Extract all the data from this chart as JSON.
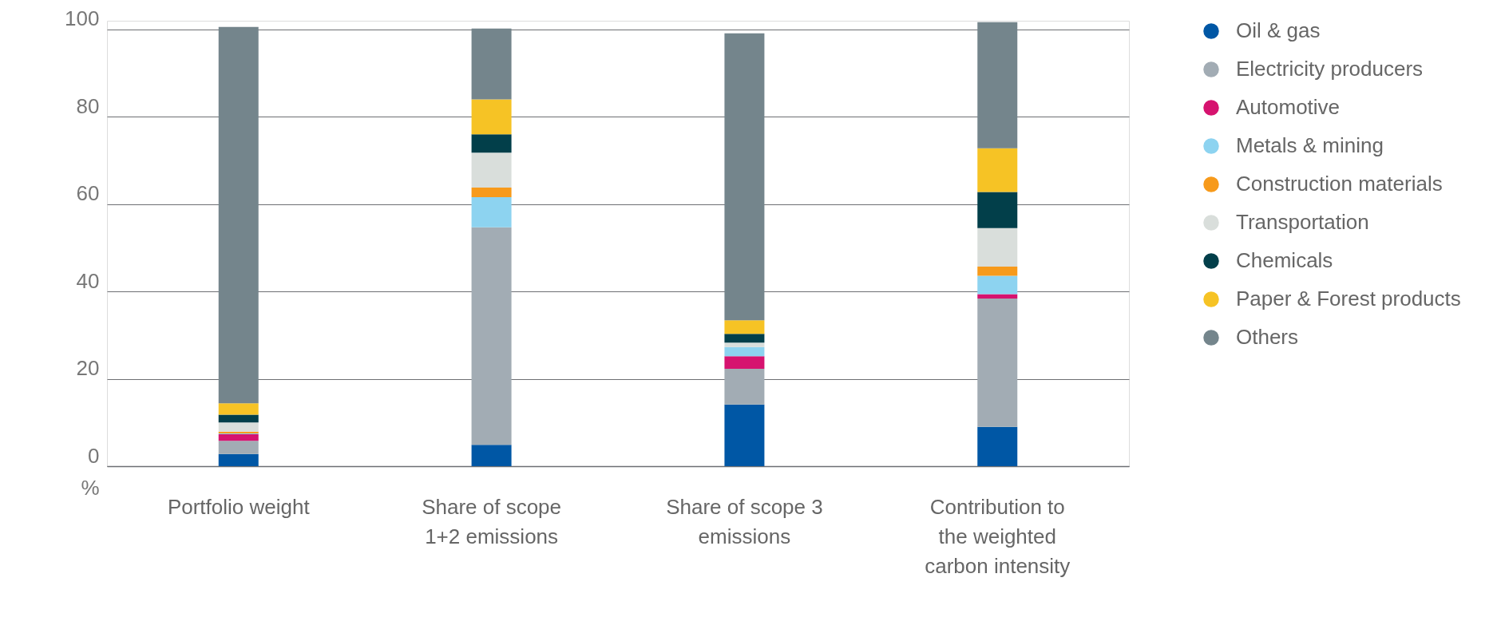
{
  "chart_data": {
    "type": "bar",
    "stacked": true,
    "ylabel": "%",
    "categories": [
      "Portfolio weight",
      "Share of scope\n1+2 emissions",
      "Share of scope 3\nemissions",
      "Contribution to\nthe weighted\ncarbon intensity"
    ],
    "series": [
      {
        "name": "Oil & gas",
        "color": "#0057a5",
        "values": [
          2.8,
          4.9,
          14.1,
          9.0
        ]
      },
      {
        "name": "Electricity producers",
        "color": "#a2acb4",
        "values": [
          3.0,
          49.8,
          8.2,
          29.4
        ]
      },
      {
        "name": "Automotive",
        "color": "#d6136f",
        "values": [
          1.5,
          0,
          2.9,
          1.0
        ]
      },
      {
        "name": "Metals & mining",
        "color": "#8dd3f0",
        "values": [
          0.2,
          6.9,
          2.1,
          4.2
        ]
      },
      {
        "name": "Construction materials",
        "color": "#f79a1b",
        "values": [
          0.4,
          2.2,
          0,
          2.1
        ]
      },
      {
        "name": "Transportation",
        "color": "#d9dedb",
        "values": [
          2.1,
          8.0,
          1.0,
          8.8
        ]
      },
      {
        "name": "Chemicals",
        "color": "#023f4a",
        "values": [
          1.8,
          4.2,
          2.0,
          8.3
        ]
      },
      {
        "name": "Paper & Forest products",
        "color": "#f6c325",
        "values": [
          2.6,
          8.0,
          3.1,
          10.0
        ]
      },
      {
        "name": "Others",
        "color": "#74858c",
        "values": [
          86.2,
          16.2,
          65.7,
          28.9
        ]
      }
    ],
    "ylim": [
      0,
      102
    ],
    "yticks": [
      0,
      20,
      40,
      60,
      80,
      100
    ],
    "grid": "y",
    "legend": "right"
  }
}
